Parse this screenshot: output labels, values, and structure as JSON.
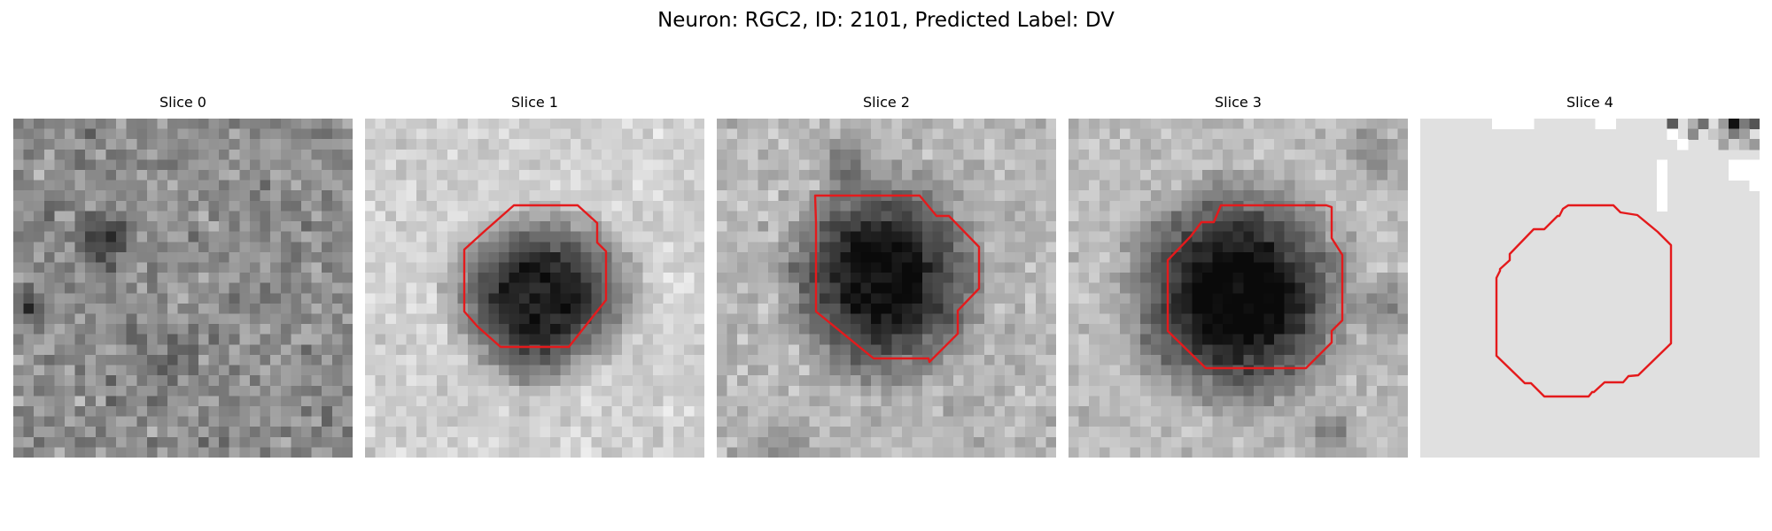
{
  "title": "Neuron: RGC2, ID: 2101, Predicted Label: DV",
  "contour_color": "#e41a1c",
  "panels": [
    {
      "title": "Slice 0",
      "has_contour": false
    },
    {
      "title": "Slice 1",
      "has_contour": true
    },
    {
      "title": "Slice 2",
      "has_contour": true
    },
    {
      "title": "Slice 3",
      "has_contour": true
    },
    {
      "title": "Slice 4",
      "has_contour": true
    }
  ]
}
